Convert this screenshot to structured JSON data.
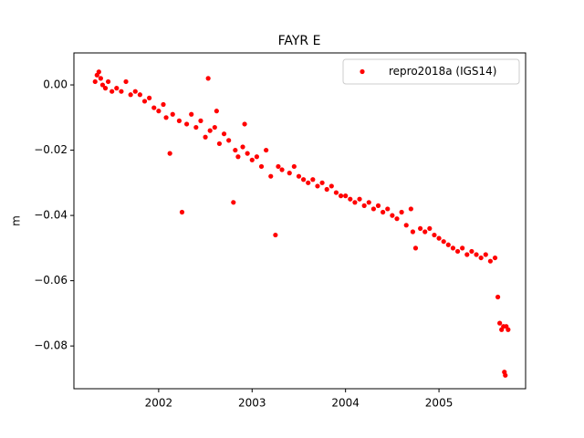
{
  "chart_data": {
    "type": "scatter",
    "title": "FAYR E",
    "y_label": "m",
    "xlim": [
      2001.093,
      2005.927
    ],
    "xticks": [
      2002,
      2003,
      2004,
      2005
    ],
    "ylim": [
      -0.0931,
      0.0098
    ],
    "yticks": [
      {
        "value": 0.0,
        "label": "0.00"
      },
      {
        "value": -0.02,
        "label": "−0.02"
      },
      {
        "value": -0.04,
        "label": "−0.04"
      },
      {
        "value": -0.06,
        "label": "−0.06"
      },
      {
        "value": -0.08,
        "label": "−0.08"
      }
    ],
    "legend": "upper right",
    "series": [
      {
        "name": "repro2018a (IGS14)",
        "color": "#ff0000",
        "x": [
          2001.32,
          2001.34,
          2001.36,
          2001.38,
          2001.4,
          2001.43,
          2001.46,
          2001.5,
          2001.55,
          2001.6,
          2001.65,
          2001.7,
          2001.75,
          2001.8,
          2001.85,
          2001.9,
          2001.95,
          2002.0,
          2002.05,
          2002.08,
          2002.12,
          2002.15,
          2002.22,
          2002.25,
          2002.3,
          2002.35,
          2002.4,
          2002.45,
          2002.5,
          2002.53,
          2002.55,
          2002.6,
          2002.62,
          2002.65,
          2002.7,
          2002.75,
          2002.8,
          2002.82,
          2002.85,
          2002.9,
          2002.92,
          2002.95,
          2003.0,
          2003.05,
          2003.1,
          2003.15,
          2003.2,
          2003.25,
          2003.28,
          2003.32,
          2003.4,
          2003.45,
          2003.5,
          2003.55,
          2003.6,
          2003.65,
          2003.7,
          2003.75,
          2003.8,
          2003.85,
          2003.9,
          2003.95,
          2004.0,
          2004.05,
          2004.1,
          2004.15,
          2004.2,
          2004.25,
          2004.3,
          2004.35,
          2004.4,
          2004.45,
          2004.5,
          2004.55,
          2004.6,
          2004.65,
          2004.7,
          2004.72,
          2004.75,
          2004.8,
          2004.85,
          2004.9,
          2004.95,
          2005.0,
          2005.05,
          2005.1,
          2005.15,
          2005.2,
          2005.25,
          2005.3,
          2005.35,
          2005.4,
          2005.45,
          2005.5,
          2005.55,
          2005.6,
          2005.63,
          2005.65,
          2005.67,
          2005.69,
          2005.7,
          2005.71,
          2005.72,
          2005.74
        ],
        "values": [
          0.001,
          0.003,
          0.004,
          0.002,
          0.0,
          -0.001,
          0.001,
          -0.002,
          -0.001,
          -0.002,
          0.001,
          -0.003,
          -0.002,
          -0.003,
          -0.005,
          -0.004,
          -0.007,
          -0.008,
          -0.006,
          -0.01,
          -0.021,
          -0.009,
          -0.011,
          -0.039,
          -0.012,
          -0.009,
          -0.013,
          -0.011,
          -0.016,
          0.002,
          -0.014,
          -0.013,
          -0.008,
          -0.018,
          -0.015,
          -0.017,
          -0.036,
          -0.02,
          -0.022,
          -0.019,
          -0.012,
          -0.021,
          -0.023,
          -0.022,
          -0.025,
          -0.02,
          -0.028,
          -0.046,
          -0.025,
          -0.026,
          -0.027,
          -0.025,
          -0.028,
          -0.029,
          -0.03,
          -0.029,
          -0.031,
          -0.03,
          -0.032,
          -0.031,
          -0.033,
          -0.034,
          -0.034,
          -0.035,
          -0.036,
          -0.035,
          -0.037,
          -0.036,
          -0.038,
          -0.037,
          -0.039,
          -0.038,
          -0.04,
          -0.041,
          -0.039,
          -0.043,
          -0.038,
          -0.045,
          -0.05,
          -0.044,
          -0.045,
          -0.044,
          -0.046,
          -0.047,
          -0.048,
          -0.049,
          -0.05,
          -0.051,
          -0.05,
          -0.052,
          -0.051,
          -0.052,
          -0.053,
          -0.052,
          -0.054,
          -0.053,
          -0.065,
          -0.073,
          -0.075,
          -0.074,
          -0.088,
          -0.089,
          -0.074,
          -0.075
        ]
      }
    ]
  }
}
